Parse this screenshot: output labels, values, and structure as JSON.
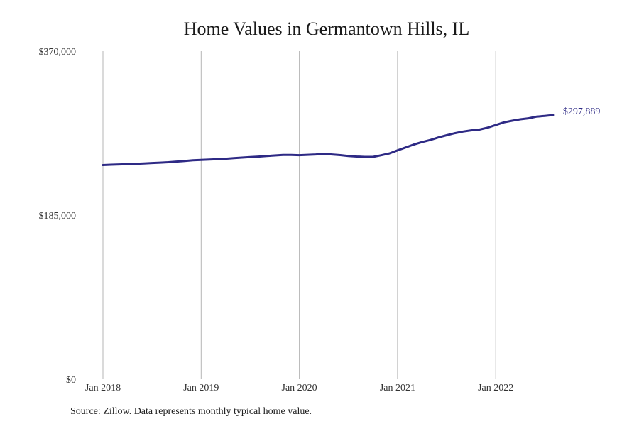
{
  "chart_data": {
    "type": "line",
    "title": "Home Values in Germantown Hills, IL",
    "xlabel": "",
    "ylabel": "",
    "ylim": [
      0,
      370000
    ],
    "yticks": [
      {
        "value": 0,
        "label": "$0"
      },
      {
        "value": 185000,
        "label": "$185,000"
      },
      {
        "value": 370000,
        "label": "$370,000"
      }
    ],
    "xticks": [
      "Jan 2018",
      "Jan 2019",
      "Jan 2020",
      "Jan 2021",
      "Jan 2022"
    ],
    "grid": "vertical",
    "line_color": "#2e2a85",
    "series": [
      {
        "x": [
          "2018-01",
          "2018-02",
          "2018-03",
          "2018-04",
          "2018-05",
          "2018-06",
          "2018-07",
          "2018-08",
          "2018-09",
          "2018-10",
          "2018-11",
          "2018-12",
          "2019-01",
          "2019-02",
          "2019-03",
          "2019-04",
          "2019-05",
          "2019-06",
          "2019-07",
          "2019-08",
          "2019-09",
          "2019-10",
          "2019-11",
          "2019-12",
          "2020-01",
          "2020-02",
          "2020-03",
          "2020-04",
          "2020-05",
          "2020-06",
          "2020-07",
          "2020-08",
          "2020-09",
          "2020-10",
          "2020-11",
          "2020-12",
          "2021-01",
          "2021-02",
          "2021-03",
          "2021-04",
          "2021-05",
          "2021-06",
          "2021-07",
          "2021-08",
          "2021-09",
          "2021-10",
          "2021-11",
          "2021-12",
          "2022-01",
          "2022-02",
          "2022-03",
          "2022-04",
          "2022-05",
          "2022-06",
          "2022-07",
          "2022-08"
        ],
        "values": [
          241500,
          241900,
          242200,
          242500,
          242800,
          243300,
          243800,
          244200,
          244700,
          245400,
          246100,
          246800,
          247200,
          247600,
          248000,
          248600,
          249300,
          249900,
          250500,
          251000,
          251600,
          252300,
          252800,
          252900,
          252600,
          253000,
          253400,
          254100,
          253400,
          252700,
          251700,
          251100,
          250700,
          250700,
          252500,
          254600,
          258000,
          261300,
          264700,
          267400,
          269700,
          272600,
          275100,
          277400,
          279300,
          280600,
          281500,
          283700,
          286600,
          289700,
          291500,
          293100,
          294200,
          296200,
          297000,
          297889
        ]
      }
    ],
    "end_label": "$297,889",
    "source": "Source: Zillow. Data represents monthly typical home value."
  }
}
